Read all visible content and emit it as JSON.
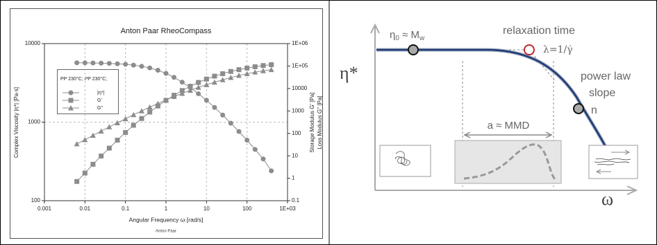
{
  "chart_data": {
    "type": "line",
    "title": "Anton Paar RheoCompass",
    "xlabel": "Angular Frequency ω  [rad/s]",
    "ylabel": "Complex Viscosity |η*| [Pa·s]",
    "y2label": [
      "Storage Modulus G' [Pa]",
      "Loss Modulus G'' [Pa]"
    ],
    "footnote": "Anton Paar",
    "legend_title": "PP 230°C; PP 230°C;",
    "legend": "upper left",
    "xscale": "log",
    "yscale": "log",
    "y2scale": "log",
    "grid": true,
    "x": [
      0.0063,
      0.01,
      0.0158,
      0.0251,
      0.0398,
      0.0631,
      0.1,
      0.158,
      0.251,
      0.398,
      0.631,
      1,
      1.58,
      2.51,
      3.98,
      6.31,
      10,
      15.8,
      25.1,
      39.8,
      63.1,
      100,
      158,
      251,
      398
    ],
    "series": [
      {
        "name": "|η*|",
        "marker": "circle",
        "color": "#8c8c8c",
        "values": [
          5700,
          5690,
          5670,
          5640,
          5600,
          5540,
          5450,
          5320,
          5140,
          4900,
          4580,
          4180,
          3720,
          3230,
          2750,
          2300,
          1900,
          1540,
          1230,
          970,
          760,
          590,
          450,
          340,
          240
        ]
      },
      {
        "name": "G'",
        "marker": "square",
        "color": "#8c8c8c",
        "axis": "y2",
        "values": [
          0.72,
          1.7,
          4.2,
          9.8,
          22,
          50,
          110,
          230,
          460,
          890,
          1660,
          2950,
          5000,
          8100,
          12600,
          18600,
          26300,
          35500,
          45700,
          57500,
          69200,
          81300,
          93300,
          105000,
          115000
        ]
      },
      {
        "name": "G''",
        "marker": "triangle",
        "color": "#8c8c8c",
        "axis": "y2",
        "values": [
          34,
          52,
          81,
          126,
          195,
          295,
          447,
          676,
          1000,
          1480,
          2140,
          3090,
          4370,
          6030,
          8320,
          11200,
          14800,
          19100,
          24500,
          30900,
          38000,
          45700,
          53700,
          61700,
          69200
        ]
      }
    ],
    "xlim": [
      0.001,
      1000
    ],
    "xticks": [
      0.001,
      0.01,
      0.1,
      1,
      10,
      100,
      {
        "value": 1000,
        "label": "1E+03"
      }
    ],
    "ylim": [
      100,
      10000
    ],
    "yticks": [
      100,
      1000,
      10000
    ],
    "y2lim": [
      0.1,
      1000000
    ],
    "y2ticks": [
      0.1,
      1,
      10,
      100,
      1000,
      10000,
      {
        "value": 100000,
        "label": "1E+05"
      },
      {
        "value": 1000000,
        "label": "1E+06"
      }
    ]
  },
  "diagram": {
    "y_axis_label": "η*",
    "x_axis_label": "ω",
    "zero_shear": [
      "η",
      "0",
      " ≈ M",
      "w"
    ],
    "relaxation": [
      "relaxation time",
      "λ=1/γ̇"
    ],
    "power_law": [
      "power law",
      "slope",
      "n"
    ],
    "distribution": "a ≈ MMD"
  }
}
